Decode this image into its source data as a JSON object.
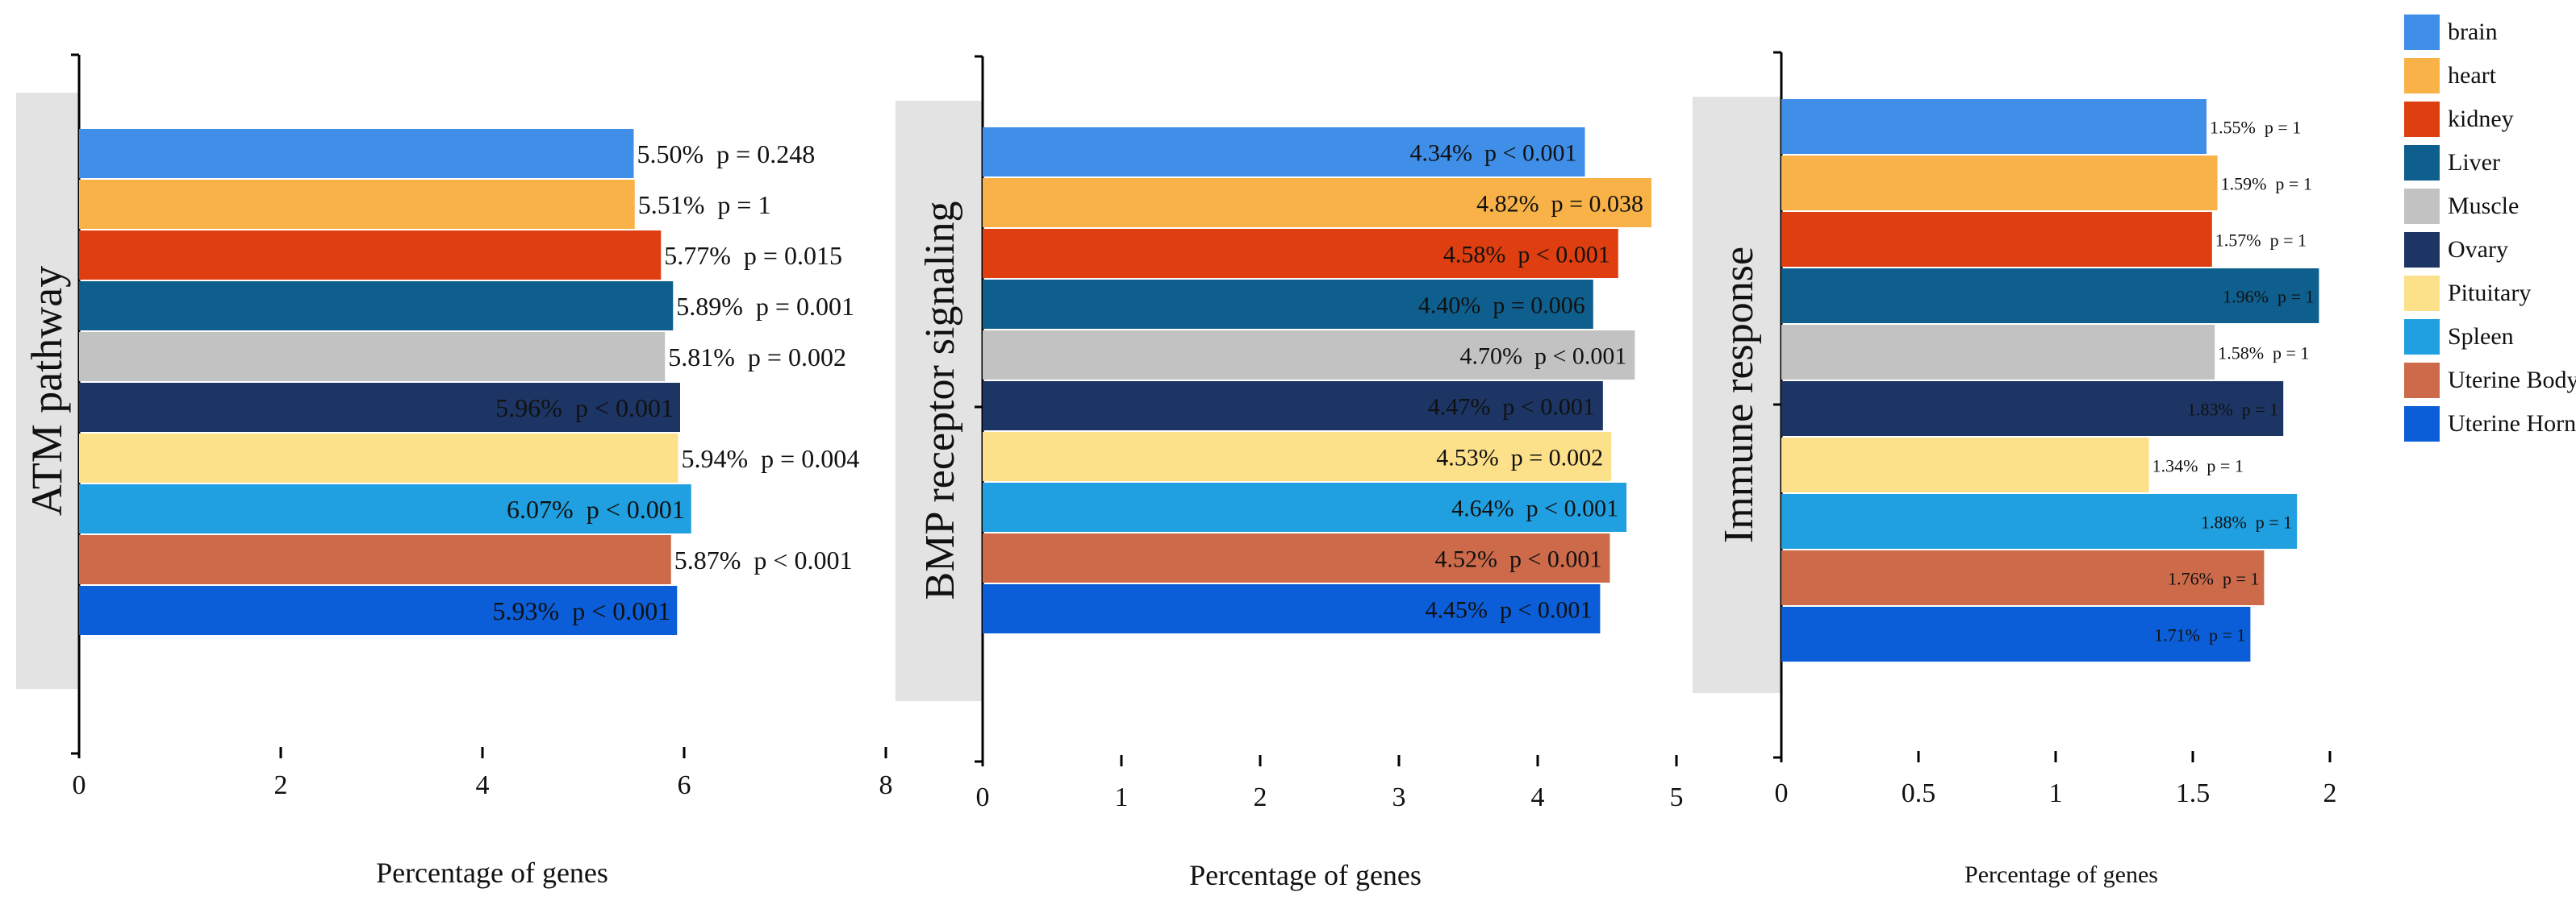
{
  "chart_data": [
    {
      "type": "bar",
      "orientation": "horizontal",
      "title": "ATM pathway",
      "xlabel": "Percentage of genes",
      "xlim": [
        0,
        8
      ],
      "xticks": [
        "0",
        "2",
        "4",
        "6",
        "8"
      ],
      "categories": [
        "brain",
        "heart",
        "kidney",
        "Liver",
        "Muscle",
        "Ovary",
        "Pituitary",
        "Spleen",
        "Uterine Body",
        "Uterine Horn"
      ],
      "values": [
        5.5,
        5.51,
        5.77,
        5.89,
        5.81,
        5.96,
        5.94,
        6.07,
        5.87,
        5.93
      ],
      "data_labels": [
        "5.50%  p = 0.248",
        "5.51%  p = 1",
        "5.77%  p = 0.015",
        "5.89%  p = 0.001",
        "5.81%  p = 0.002",
        "5.96%  p < 0.001",
        "5.94%  p = 0.004",
        "6.07%  p < 0.001",
        "5.87%  p < 0.001",
        "5.93%  p < 0.001"
      ],
      "label_inside": [
        false,
        false,
        false,
        false,
        false,
        true,
        false,
        true,
        false,
        true
      ]
    },
    {
      "type": "bar",
      "orientation": "horizontal",
      "title": "BMP receptor signaling",
      "xlabel": "Percentage of genes",
      "xlim": [
        0,
        5
      ],
      "xticks": [
        "0",
        "1",
        "2",
        "3",
        "4",
        "5"
      ],
      "categories": [
        "brain",
        "heart",
        "kidney",
        "Liver",
        "Muscle",
        "Ovary",
        "Pituitary",
        "Spleen",
        "Uterine Body",
        "Uterine Horn"
      ],
      "values": [
        4.34,
        4.82,
        4.58,
        4.4,
        4.7,
        4.47,
        4.53,
        4.64,
        4.52,
        4.45
      ],
      "data_labels": [
        "4.34%  p < 0.001",
        "4.82%  p = 0.038",
        "4.58%  p < 0.001",
        "4.40%  p = 0.006",
        "4.70%  p < 0.001",
        "4.47%  p < 0.001",
        "4.53%  p = 0.002",
        "4.64%  p < 0.001",
        "4.52%  p < 0.001",
        "4.45%  p < 0.001"
      ],
      "label_inside": [
        true,
        true,
        true,
        true,
        true,
        true,
        true,
        true,
        true,
        true
      ]
    },
    {
      "type": "bar",
      "orientation": "horizontal",
      "title": "Immune response",
      "xlabel": "Percentage of genes",
      "xlim": [
        0,
        2
      ],
      "xticks": [
        "0",
        "0.5",
        "1",
        "1.5",
        "2"
      ],
      "categories": [
        "brain",
        "heart",
        "kidney",
        "Liver",
        "Muscle",
        "Ovary",
        "Pituitary",
        "Spleen",
        "Uterine Body",
        "Uterine Horn"
      ],
      "values": [
        1.55,
        1.59,
        1.57,
        1.96,
        1.58,
        1.83,
        1.34,
        1.88,
        1.76,
        1.71
      ],
      "data_labels": [
        "1.55%  p = 1",
        "1.59%  p = 1",
        "1.57%  p = 1",
        "1.96%  p = 1",
        "1.58%  p = 1",
        "1.83%  p = 1",
        "1.34%  p = 1",
        "1.88%  p = 1",
        "1.76%  p = 1",
        "1.71%  p = 1"
      ],
      "label_inside": [
        false,
        false,
        false,
        true,
        false,
        true,
        false,
        true,
        true,
        true
      ]
    }
  ],
  "legend": {
    "position": "right",
    "items": [
      {
        "label": "brain",
        "color": "#3f8ee8"
      },
      {
        "label": "heart",
        "color": "#f8b247"
      },
      {
        "label": "kidney",
        "color": "#de3e10"
      },
      {
        "label": "Liver",
        "color": "#0e5f8e"
      },
      {
        "label": "Muscle",
        "color": "#c2c2c2"
      },
      {
        "label": "Ovary",
        "color": "#1c3564"
      },
      {
        "label": "Pituitary",
        "color": "#fde08a"
      },
      {
        "label": "Spleen",
        "color": "#20a0e0"
      },
      {
        "label": "Uterine Body",
        "color": "#cc6a4a"
      },
      {
        "label": "Uterine Horn",
        "color": "#0b5ed8"
      }
    ]
  }
}
